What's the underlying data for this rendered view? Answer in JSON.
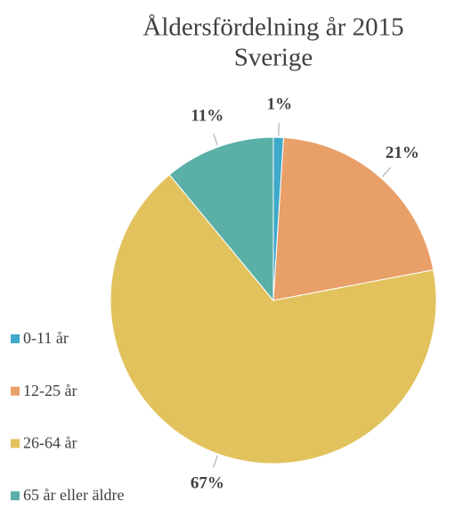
{
  "chart_data": {
    "type": "pie",
    "title": "Åldersfördelning år 2015",
    "subtitle": "Sverige",
    "categories": [
      "0-11 år",
      "12-25 år",
      "26-64 år",
      "65 år eller äldre"
    ],
    "values": [
      1,
      21,
      67,
      11
    ],
    "value_labels": [
      "1%",
      "21%",
      "67%",
      "11%"
    ],
    "colors": [
      "#3fa9c9",
      "#e89f68",
      "#e2c25d",
      "#5aafa7"
    ],
    "legend": "left"
  }
}
